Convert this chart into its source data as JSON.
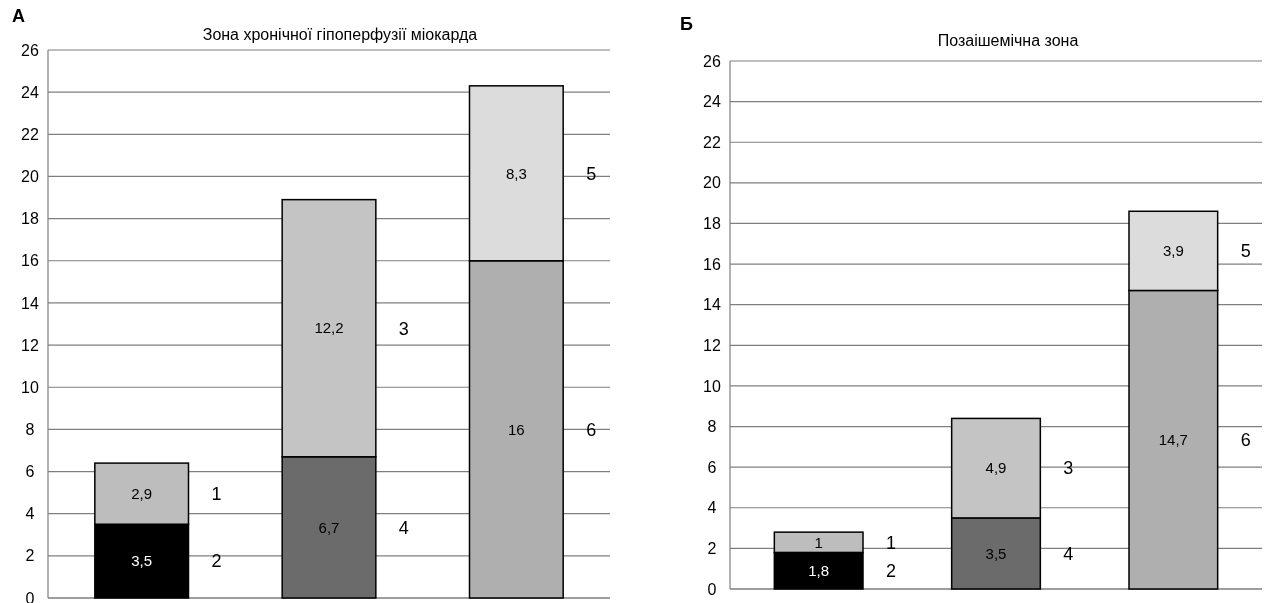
{
  "chart_data": [
    {
      "type": "bar",
      "stacked": true,
      "title": "Зона хронічної гіпоперфузії міокарда",
      "annotations": [
        "А"
      ],
      "categories": [
        null,
        null,
        null
      ],
      "ylim": [
        0,
        26
      ],
      "yticks": [
        0,
        2,
        4,
        6,
        8,
        10,
        12,
        14,
        16,
        18,
        20,
        22,
        24,
        26
      ],
      "grid": "y",
      "series": [
        {
          "name": "2",
          "color": "#000000",
          "values": [
            3.5,
            null,
            null
          ],
          "value_labels": [
            "3,5",
            null,
            null
          ]
        },
        {
          "name": "1",
          "color": "#bdbdbd",
          "values": [
            2.9,
            null,
            null
          ],
          "value_labels": [
            "2,9",
            null,
            null
          ]
        },
        {
          "name": "4",
          "color": "#6b6b6b",
          "values": [
            null,
            6.7,
            null
          ],
          "value_labels": [
            null,
            "6,7",
            null
          ]
        },
        {
          "name": "3",
          "color": "#c4c4c4",
          "values": [
            null,
            12.2,
            null
          ],
          "value_labels": [
            null,
            "12,2",
            null
          ]
        },
        {
          "name": "6",
          "color": "#afafaf",
          "values": [
            null,
            null,
            16
          ],
          "value_labels": [
            null,
            null,
            "16"
          ]
        },
        {
          "name": "5",
          "color": "#dcdcdc",
          "values": [
            null,
            null,
            8.3
          ],
          "value_labels": [
            null,
            null,
            "8,3"
          ]
        }
      ]
    },
    {
      "type": "bar",
      "stacked": true,
      "title": "Позаішемічна зона",
      "annotations": [
        "Б"
      ],
      "categories": [
        null,
        null,
        null
      ],
      "ylim": [
        0,
        26
      ],
      "yticks": [
        0,
        2,
        4,
        6,
        8,
        10,
        12,
        14,
        16,
        18,
        20,
        22,
        24,
        26
      ],
      "grid": "y",
      "series": [
        {
          "name": "2",
          "color": "#000000",
          "values": [
            1.8,
            null,
            null
          ],
          "value_labels": [
            "1,8",
            null,
            null
          ]
        },
        {
          "name": "1",
          "color": "#bdbdbd",
          "values": [
            1,
            null,
            null
          ],
          "value_labels": [
            "1",
            null,
            null
          ]
        },
        {
          "name": "4",
          "color": "#6b6b6b",
          "values": [
            null,
            3.5,
            null
          ],
          "value_labels": [
            null,
            "3,5",
            null
          ]
        },
        {
          "name": "3",
          "color": "#c4c4c4",
          "values": [
            null,
            4.9,
            null
          ],
          "value_labels": [
            null,
            "4,9",
            null
          ]
        },
        {
          "name": "6",
          "color": "#afafaf",
          "values": [
            null,
            null,
            14.7
          ],
          "value_labels": [
            null,
            null,
            "14,7"
          ]
        },
        {
          "name": "5",
          "color": "#dcdcdc",
          "values": [
            null,
            null,
            3.9
          ],
          "value_labels": [
            null,
            null,
            "3,9"
          ]
        }
      ]
    }
  ]
}
